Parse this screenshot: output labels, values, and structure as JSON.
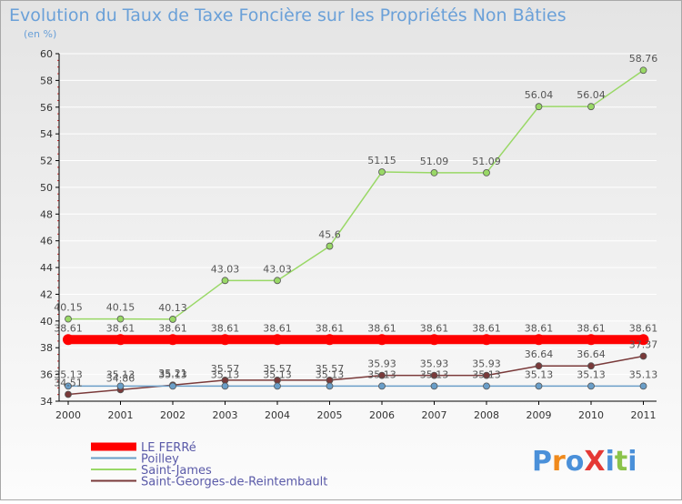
{
  "chart_data": {
    "type": "line",
    "title": "Evolution du Taux de Taxe Foncière sur les Propriétés Non Bâties",
    "subtitle": "(en %)",
    "ylim": [
      34,
      60
    ],
    "yticks": [
      34,
      36,
      38,
      40,
      42,
      44,
      46,
      48,
      50,
      52,
      54,
      56,
      58,
      60
    ],
    "categories": [
      "2000",
      "2001",
      "2002",
      "2003",
      "2004",
      "2005",
      "2006",
      "2007",
      "2008",
      "2009",
      "2010",
      "2011"
    ],
    "series": [
      {
        "name": "LE FERRé",
        "color": "#ff0000",
        "values": [
          38.61,
          38.61,
          38.61,
          38.61,
          38.61,
          38.61,
          38.61,
          38.61,
          38.61,
          38.61,
          38.61,
          38.61
        ],
        "labels": [
          "38.61",
          "38.61",
          "38.61",
          "38.61",
          "38.61",
          "38.61",
          "38.61",
          "38.61",
          "38.61",
          "38.61",
          "38.61",
          "38.61"
        ]
      },
      {
        "name": "Poilley",
        "color": "#6a9ec8",
        "values": [
          35.13,
          35.13,
          35.13,
          35.13,
          35.13,
          35.13,
          35.13,
          35.13,
          35.13,
          35.13,
          35.13,
          35.13
        ],
        "labels": [
          "35.13",
          "35.13",
          "35.13",
          "35.13",
          "35.13",
          "35.13",
          "35.13",
          "35.13",
          "35.13",
          "35.13",
          "35.13",
          "35.13"
        ]
      },
      {
        "name": "Saint-James",
        "color": "#99d866",
        "values": [
          40.15,
          40.15,
          40.13,
          43.03,
          43.03,
          45.6,
          51.15,
          51.09,
          51.09,
          56.04,
          56.04,
          58.76
        ],
        "labels": [
          "40.15",
          "40.15",
          "40.13",
          "43.03",
          "43.03",
          "45.6",
          "51.15",
          "51.09",
          "51.09",
          "56.04",
          "56.04",
          "58.76"
        ]
      },
      {
        "name": "Saint-Georges-de-Reintembault",
        "color": "#7a3a3a",
        "values": [
          34.51,
          34.86,
          35.21,
          35.57,
          35.57,
          35.57,
          35.93,
          35.93,
          35.93,
          36.64,
          36.64,
          37.37
        ],
        "labels": [
          "34.51",
          "34.86",
          "35.21",
          "35.57",
          "35.57",
          "35.57",
          "35.93",
          "35.93",
          "35.93",
          "36.64",
          "36.64",
          "37.37"
        ]
      }
    ]
  },
  "logo": {
    "text": "ProXiti",
    "colors": [
      "#4a90d9",
      "#f08a1c",
      "#4a90d9",
      "#e53935",
      "#4a90d9",
      "#8bc34a",
      "#4a90d9"
    ]
  }
}
